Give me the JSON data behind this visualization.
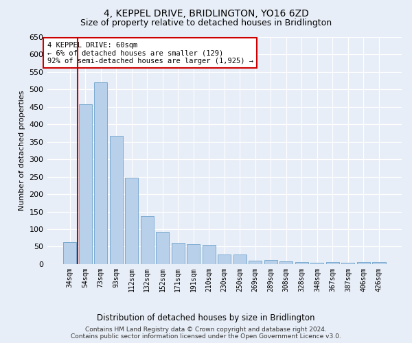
{
  "title": "4, KEPPEL DRIVE, BRIDLINGTON, YO16 6ZD",
  "subtitle": "Size of property relative to detached houses in Bridlington",
  "xlabel": "Distribution of detached houses by size in Bridlington",
  "ylabel": "Number of detached properties",
  "categories": [
    "34sqm",
    "54sqm",
    "73sqm",
    "93sqm",
    "112sqm",
    "132sqm",
    "152sqm",
    "171sqm",
    "191sqm",
    "210sqm",
    "230sqm",
    "250sqm",
    "269sqm",
    "289sqm",
    "308sqm",
    "328sqm",
    "348sqm",
    "367sqm",
    "387sqm",
    "406sqm",
    "426sqm"
  ],
  "values": [
    62,
    457,
    520,
    368,
    248,
    138,
    93,
    60,
    57,
    55,
    27,
    27,
    10,
    11,
    7,
    6,
    3,
    6,
    3,
    5,
    5
  ],
  "bar_color": "#b8d0ea",
  "bar_edge_color": "#7aaad0",
  "vline_x": 0.5,
  "vline_color": "#cc0000",
  "annotation_text": "4 KEPPEL DRIVE: 60sqm\n← 6% of detached houses are smaller (129)\n92% of semi-detached houses are larger (1,925) →",
  "annotation_box_color": "#ffffff",
  "annotation_box_edge_color": "#cc0000",
  "ylim": [
    0,
    650
  ],
  "yticks": [
    0,
    50,
    100,
    150,
    200,
    250,
    300,
    350,
    400,
    450,
    500,
    550,
    600,
    650
  ],
  "footer_line1": "Contains HM Land Registry data © Crown copyright and database right 2024.",
  "footer_line2": "Contains public sector information licensed under the Open Government Licence v3.0.",
  "bg_color": "#e8eef7",
  "plot_bg_color": "#e8eef7",
  "grid_color": "#ffffff",
  "title_fontsize": 10,
  "subtitle_fontsize": 9,
  "xlabel_fontsize": 8.5,
  "ylabel_fontsize": 8
}
